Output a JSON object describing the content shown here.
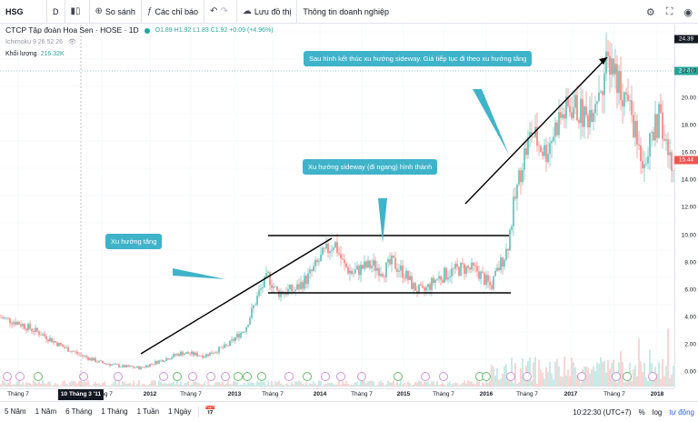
{
  "toolbar": {
    "symbol": "HSG",
    "interval": "D",
    "compare_label": "So sánh",
    "indicators_label": "Các chỉ báo",
    "save_label": "Lưu đồ thị",
    "financials_label": "Thông tin doanh nghiệp"
  },
  "legend": {
    "name": "CTCP Tập đoàn Hoa Sen · HOSE · 1D",
    "ohlc": "O1.89 H1.92 L1.83 C1.92 +0.09 (+4.96%)",
    "ichimoku": "Ichimoku 9 26 52 26",
    "volume_label": "Khối lượng",
    "volume_value": "216.32K"
  },
  "price_axis": {
    "labels": [
      "22.00",
      "20.00",
      "18.00",
      "16.00",
      "14.00",
      "12.00",
      "10.00",
      "8.00",
      "6.00",
      "4.00",
      "2.00",
      "0.00"
    ],
    "tag_top": "24.39",
    "tag_last": "15.44",
    "tag_mid": "22.00"
  },
  "time_axis": {
    "labels": [
      "Tháng 7",
      "Tháng 7",
      "2012",
      "Tháng 7",
      "2013",
      "Tháng 7",
      "2014",
      "Tháng 7",
      "2015",
      "Tháng 7",
      "2016",
      "Tháng 7",
      "2017",
      "Tháng 7",
      "2018"
    ],
    "cursor_label": "10 Tháng 3 '11"
  },
  "annotations": {
    "uptrend": "Xu hướng tăng",
    "sideway": "Xu hướng sideway (đi ngang) hình thành",
    "continuation": "Sau hình kết thúc xu hướng sideway. Giá tiếp tục đi theo xu hướng tăng"
  },
  "bottombar": {
    "ranges": [
      "5 Năm",
      "1 Năm",
      "6 Tháng",
      "1 Tháng",
      "1 Tuần",
      "1 Ngày"
    ],
    "time": "10:22:30 (UTC+7)",
    "percent": "%",
    "log": "log",
    "auto": "tự động"
  },
  "colors": {
    "up": "#26a69a",
    "down": "#ef5350",
    "accent": "#2962ff",
    "callout": "#3fb3c9"
  }
}
